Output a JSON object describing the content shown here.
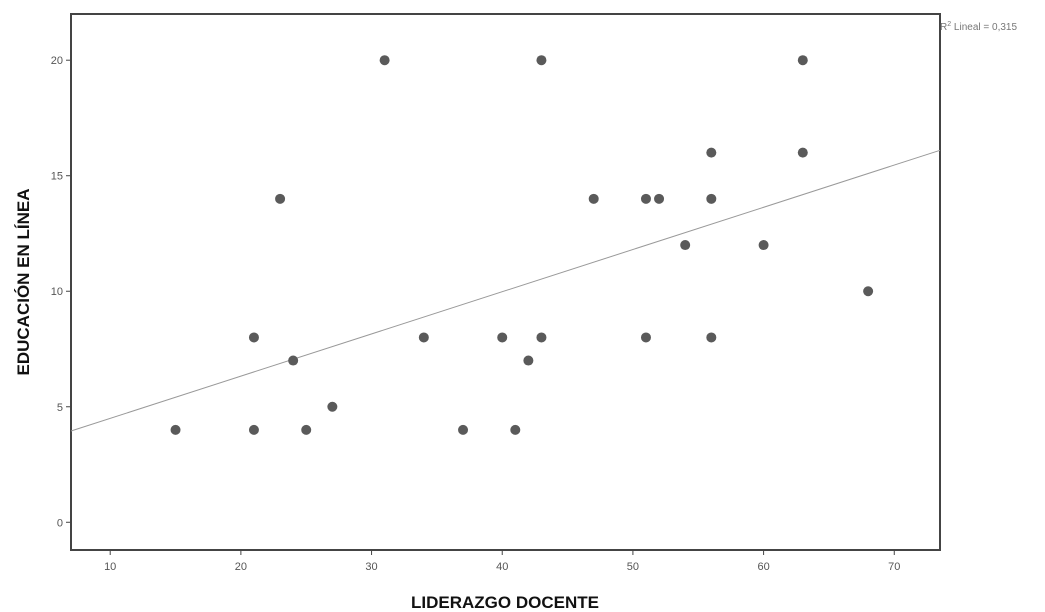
{
  "chart_data": {
    "type": "scatter",
    "title": "",
    "xlabel": "LIDERAZGO DOCENTE",
    "ylabel": "EDUCACIÓN EN LÍNEA",
    "xlim": [
      7,
      73.5
    ],
    "ylim": [
      -1.2,
      22
    ],
    "xticks": [
      10,
      20,
      30,
      40,
      50,
      60,
      70
    ],
    "yticks": [
      0,
      5,
      10,
      15,
      20
    ],
    "grid": false,
    "points": [
      {
        "x": 15,
        "y": 4
      },
      {
        "x": 21,
        "y": 8
      },
      {
        "x": 21,
        "y": 4
      },
      {
        "x": 23,
        "y": 14
      },
      {
        "x": 24,
        "y": 7
      },
      {
        "x": 25,
        "y": 4
      },
      {
        "x": 27,
        "y": 5
      },
      {
        "x": 31,
        "y": 20
      },
      {
        "x": 34,
        "y": 8
      },
      {
        "x": 37,
        "y": 4
      },
      {
        "x": 40,
        "y": 8
      },
      {
        "x": 41,
        "y": 4
      },
      {
        "x": 42,
        "y": 7
      },
      {
        "x": 43,
        "y": 20
      },
      {
        "x": 43,
        "y": 8
      },
      {
        "x": 47,
        "y": 14
      },
      {
        "x": 51,
        "y": 14
      },
      {
        "x": 51,
        "y": 8
      },
      {
        "x": 52,
        "y": 14
      },
      {
        "x": 54,
        "y": 12
      },
      {
        "x": 56,
        "y": 16
      },
      {
        "x": 56,
        "y": 14
      },
      {
        "x": 56,
        "y": 8
      },
      {
        "x": 60,
        "y": 12
      },
      {
        "x": 63,
        "y": 20
      },
      {
        "x": 63,
        "y": 16
      },
      {
        "x": 68,
        "y": 10
      }
    ],
    "fit_line": {
      "x1": 7,
      "y1": 3.95,
      "x2": 73.5,
      "y2": 16.1
    },
    "fit_label_prefix": "R",
    "fit_label_sup": "2",
    "fit_label": " Lineal = 0,315",
    "colors": {
      "point": "#5a5a5a",
      "line": "#999999",
      "frame": "#444444",
      "text": "#555555"
    }
  }
}
